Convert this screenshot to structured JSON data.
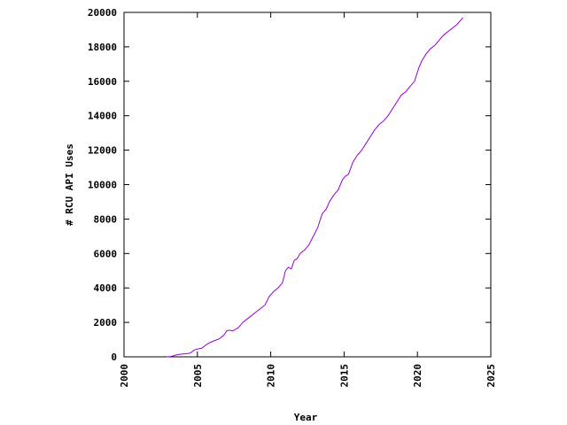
{
  "chart_data": {
    "type": "line",
    "title": "",
    "xlabel": "Year",
    "ylabel": "# RCU API Uses",
    "xlim": [
      2000,
      2025
    ],
    "ylim": [
      0,
      20000
    ],
    "xticks": [
      "2000",
      "2005",
      "2010",
      "2015",
      "2020",
      "2025"
    ],
    "yticks": [
      "0",
      "2000",
      "4000",
      "6000",
      "8000",
      "10000",
      "12000",
      "14000",
      "16000",
      "18000",
      "20000"
    ],
    "grid": false,
    "legend": "none",
    "series": [
      {
        "color": "#9400d3",
        "x": [
          2002.9,
          2003.2,
          2003.5,
          2003.8,
          2004.2,
          2004.5,
          2004.8,
          2005.0,
          2005.3,
          2005.6,
          2005.9,
          2006.2,
          2006.5,
          2006.8,
          2007.0,
          2007.2,
          2007.4,
          2007.6,
          2007.8,
          2008.1,
          2008.4,
          2008.7,
          2009.0,
          2009.3,
          2009.6,
          2009.9,
          2010.2,
          2010.5,
          2010.8,
          2011.0,
          2011.2,
          2011.4,
          2011.6,
          2011.8,
          2012.0,
          2012.3,
          2012.6,
          2012.9,
          2013.2,
          2013.5,
          2013.8,
          2014.0,
          2014.3,
          2014.6,
          2014.9,
          2015.1,
          2015.3,
          2015.6,
          2015.9,
          2016.2,
          2016.5,
          2016.8,
          2017.1,
          2017.4,
          2017.7,
          2018.0,
          2018.3,
          2018.6,
          2018.9,
          2019.2,
          2019.5,
          2019.8,
          2020.1,
          2020.3,
          2020.6,
          2020.9,
          2021.2,
          2021.5,
          2021.8,
          2022.1,
          2022.4,
          2022.7,
          2022.9,
          2023.1
        ],
        "y": [
          0,
          20,
          100,
          150,
          180,
          210,
          400,
          450,
          500,
          700,
          850,
          950,
          1050,
          1250,
          1500,
          1550,
          1500,
          1600,
          1700,
          2000,
          2200,
          2400,
          2600,
          2800,
          3000,
          3500,
          3800,
          4000,
          4300,
          5000,
          5200,
          5100,
          5600,
          5700,
          6000,
          6200,
          6500,
          7000,
          7500,
          8300,
          8600,
          9000,
          9400,
          9700,
          10300,
          10500,
          10600,
          11300,
          11700,
          12000,
          12400,
          12800,
          13200,
          13500,
          13700,
          14000,
          14400,
          14800,
          15200,
          15400,
          15700,
          16000,
          16800,
          17200,
          17600,
          17900,
          18100,
          18400,
          18700,
          18900,
          19100,
          19300,
          19500,
          19700
        ]
      }
    ]
  }
}
